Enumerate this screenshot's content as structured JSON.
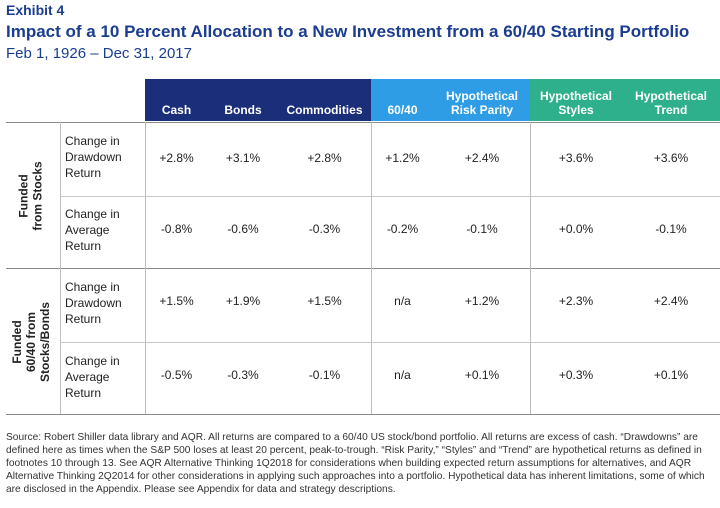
{
  "header": {
    "exhibit": "Exhibit 4",
    "title": "Impact of a 10 Percent Allocation to a New Investment from a 60/40 Starting Portfolio",
    "subtitle": "Feb 1, 1926 – Dec 31, 2017"
  },
  "columns": {
    "cash": "Cash",
    "bonds": "Bonds",
    "commodities": "Commodities",
    "sixty_forty": "60/40",
    "risk_parity_1": "Hypothetical",
    "risk_parity_2": "Risk Parity",
    "styles_1": "Hypothetical",
    "styles_2": "Styles",
    "trend_1": "Hypothetical",
    "trend_2": "Trend"
  },
  "groups": [
    {
      "label_1": "Funded",
      "label_2": "from Stocks",
      "rows": [
        {
          "metric_1": "Change in",
          "metric_2": "Drawdown",
          "metric_3": "Return",
          "values": [
            "+2.8%",
            "+3.1%",
            "+2.8%",
            "+1.2%",
            "+2.4%",
            "+3.6%",
            "+3.6%"
          ]
        },
        {
          "metric_1": "Change in",
          "metric_2": "Average",
          "metric_3": "Return",
          "values": [
            "-0.8%",
            "-0.6%",
            "-0.3%",
            "-0.2%",
            "-0.1%",
            "+0.0%",
            "-0.1%"
          ]
        }
      ]
    },
    {
      "label_1": "Funded",
      "label_2": "60/40 from",
      "label_3": "Stocks/Bonds",
      "rows": [
        {
          "metric_1": "Change in",
          "metric_2": "Drawdown",
          "metric_3": "Return",
          "values": [
            "+1.5%",
            "+1.9%",
            "+1.5%",
            "n/a",
            "+1.2%",
            "+2.3%",
            "+2.4%"
          ]
        },
        {
          "metric_1": "Change in",
          "metric_2": "Average",
          "metric_3": "Return",
          "values": [
            "-0.5%",
            "-0.3%",
            "-0.1%",
            "n/a",
            "+0.1%",
            "+0.3%",
            "+0.1%"
          ]
        }
      ]
    }
  ],
  "source": "Source: Robert Shiller data library and AQR. All returns are compared to a 60/40 US stock/bond portfolio. All returns are excess of cash. “Drawdowns” are defined here as times when the S&P 500 loses at least 20 percent, peak-to-trough. “Risk Parity,” “Styles” and “Trend” are hypothetical returns as defined in footnotes 10 through 13. See AQR Alternative Thinking 1Q2018 for considerations when building expected return assumptions for alternatives, and AQR Alternative Thinking 2Q2014 for other considerations in applying such approaches into a portfolio. Hypothetical data has inherent limitations, some of which are disclosed in the Appendix. Please see Appendix for data and strategy descriptions."
}
